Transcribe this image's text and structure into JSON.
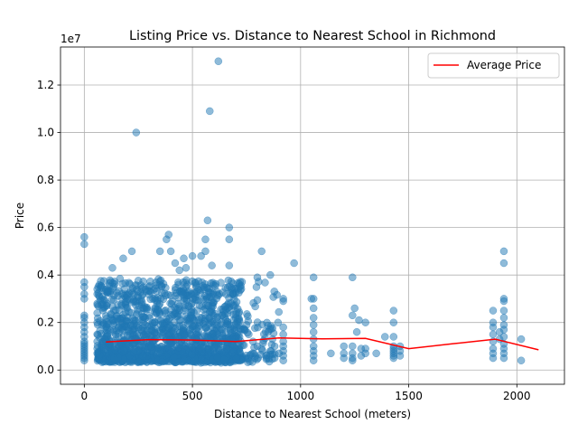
{
  "chart_data": {
    "type": "scatter",
    "title": "Listing Price vs. Distance to Nearest School in Richmond",
    "xlabel": "Distance to Nearest School (meters)",
    "ylabel": "Price",
    "y_scale_label": "1e7",
    "xlim": [
      -110,
      2220
    ],
    "ylim": [
      -600000,
      13600000
    ],
    "xticks": [
      0,
      500,
      1000,
      1500,
      2000
    ],
    "xtick_labels": [
      "0",
      "500",
      "1000",
      "1500",
      "2000"
    ],
    "yticks": [
      0,
      2000000,
      4000000,
      6000000,
      8000000,
      10000000,
      12000000
    ],
    "ytick_labels": [
      "0.0",
      "0.2",
      "0.4",
      "0.6",
      "0.8",
      "1.0",
      "1.2"
    ],
    "grid": true,
    "legend_position": "top-right",
    "colors": {
      "points": "#1f77b4",
      "average": "#ff0000"
    },
    "series": [
      {
        "type": "scatter",
        "points": [
          [
            0,
            5600000
          ],
          [
            0,
            5300000
          ],
          [
            0,
            3700000
          ],
          [
            0,
            3500000
          ],
          [
            0,
            3200000
          ],
          [
            0,
            3000000
          ],
          [
            0,
            2300000
          ],
          [
            0,
            2200000
          ],
          [
            0,
            2000000
          ],
          [
            0,
            1800000
          ],
          [
            0,
            1600000
          ],
          [
            0,
            1400000
          ],
          [
            0,
            1200000
          ],
          [
            0,
            1100000
          ],
          [
            0,
            1000000
          ],
          [
            0,
            900000
          ],
          [
            0,
            800000
          ],
          [
            0,
            700000
          ],
          [
            0,
            600000
          ],
          [
            0,
            500000
          ],
          [
            0,
            400000
          ],
          [
            60,
            3400000
          ],
          [
            60,
            3200000
          ],
          [
            60,
            2800000
          ],
          [
            60,
            2400000
          ],
          [
            60,
            2000000
          ],
          [
            60,
            1500000
          ],
          [
            60,
            1200000
          ],
          [
            60,
            900000
          ],
          [
            60,
            700000
          ],
          [
            240,
            10000000
          ],
          [
            580,
            10900000
          ],
          [
            620,
            13000000
          ],
          [
            570,
            6300000
          ],
          [
            670,
            6000000
          ],
          [
            390,
            5700000
          ],
          [
            380,
            5500000
          ],
          [
            560,
            5500000
          ],
          [
            670,
            5500000
          ],
          [
            220,
            5000000
          ],
          [
            350,
            5000000
          ],
          [
            400,
            5000000
          ],
          [
            560,
            5000000
          ],
          [
            820,
            5000000
          ],
          [
            180,
            4700000
          ],
          [
            460,
            4700000
          ],
          [
            500,
            4800000
          ],
          [
            540,
            4800000
          ],
          [
            420,
            4500000
          ],
          [
            590,
            4400000
          ],
          [
            670,
            4400000
          ],
          [
            130,
            4300000
          ],
          [
            470,
            4300000
          ],
          [
            440,
            4200000
          ],
          [
            970,
            4500000
          ],
          [
            860,
            4000000
          ],
          [
            800,
            3900000
          ],
          [
            1060,
            3900000
          ],
          [
            1240,
            3900000
          ],
          [
            1050,
            3000000
          ],
          [
            920,
            3000000
          ],
          [
            920,
            2900000
          ],
          [
            1060,
            3000000
          ],
          [
            1060,
            2600000
          ],
          [
            1060,
            2200000
          ],
          [
            1060,
            1900000
          ],
          [
            1060,
            1600000
          ],
          [
            1060,
            1300000
          ],
          [
            1060,
            1000000
          ],
          [
            1060,
            800000
          ],
          [
            1060,
            600000
          ],
          [
            1060,
            400000
          ],
          [
            1250,
            2600000
          ],
          [
            1240,
            2300000
          ],
          [
            1270,
            2100000
          ],
          [
            1260,
            1600000
          ],
          [
            1300,
            2000000
          ],
          [
            1240,
            1000000
          ],
          [
            1240,
            700000
          ],
          [
            1240,
            500000
          ],
          [
            1240,
            400000
          ],
          [
            1200,
            1000000
          ],
          [
            1200,
            700000
          ],
          [
            1200,
            500000
          ],
          [
            1140,
            700000
          ],
          [
            1280,
            900000
          ],
          [
            1280,
            600000
          ],
          [
            1300,
            900000
          ],
          [
            1300,
            700000
          ],
          [
            1350,
            700000
          ],
          [
            1390,
            1400000
          ],
          [
            1430,
            2500000
          ],
          [
            1430,
            2000000
          ],
          [
            1430,
            1400000
          ],
          [
            1430,
            1000000
          ],
          [
            1430,
            900000
          ],
          [
            1430,
            800000
          ],
          [
            1430,
            700000
          ],
          [
            1430,
            600000
          ],
          [
            1430,
            500000
          ],
          [
            1460,
            1000000
          ],
          [
            1460,
            800000
          ],
          [
            1460,
            600000
          ],
          [
            1890,
            2500000
          ],
          [
            1890,
            2000000
          ],
          [
            1890,
            1800000
          ],
          [
            1890,
            1500000
          ],
          [
            1890,
            1200000
          ],
          [
            1890,
            900000
          ],
          [
            1890,
            700000
          ],
          [
            1890,
            500000
          ],
          [
            1920,
            1600000
          ],
          [
            1920,
            1300000
          ],
          [
            1940,
            5000000
          ],
          [
            1940,
            4500000
          ],
          [
            1940,
            3000000
          ],
          [
            1940,
            2900000
          ],
          [
            1940,
            2500000
          ],
          [
            1940,
            2200000
          ],
          [
            1940,
            1900000
          ],
          [
            1940,
            1700000
          ],
          [
            1940,
            1400000
          ],
          [
            1940,
            1100000
          ],
          [
            1940,
            900000
          ],
          [
            1940,
            700000
          ],
          [
            1940,
            500000
          ],
          [
            2020,
            1300000
          ],
          [
            2020,
            400000
          ],
          [
            750,
            1900000
          ],
          [
            760,
            1500000
          ],
          [
            780,
            1200000
          ],
          [
            800,
            1000000
          ],
          [
            820,
            900000
          ],
          [
            850,
            1600000
          ],
          [
            870,
            1300000
          ],
          [
            880,
            1000000
          ],
          [
            900,
            700000
          ],
          [
            920,
            1800000
          ],
          [
            920,
            1500000
          ],
          [
            920,
            1200000
          ],
          [
            920,
            1000000
          ],
          [
            920,
            800000
          ],
          [
            920,
            600000
          ],
          [
            920,
            400000
          ],
          [
            840,
            600000
          ],
          [
            860,
            800000
          ],
          [
            880,
            500000
          ]
        ],
        "cloud": {
          "x_range": [
            60,
            900
          ],
          "y_range": [
            200000,
            4000000
          ]
        }
      },
      {
        "type": "line",
        "name": "Average Price",
        "x": [
          100,
          300,
          500,
          700,
          900,
          1100,
          1300,
          1500,
          1700,
          1900,
          2100
        ],
        "y": [
          1180000,
          1280000,
          1260000,
          1200000,
          1350000,
          1310000,
          1330000,
          900000,
          1100000,
          1300000,
          850000
        ]
      }
    ]
  }
}
